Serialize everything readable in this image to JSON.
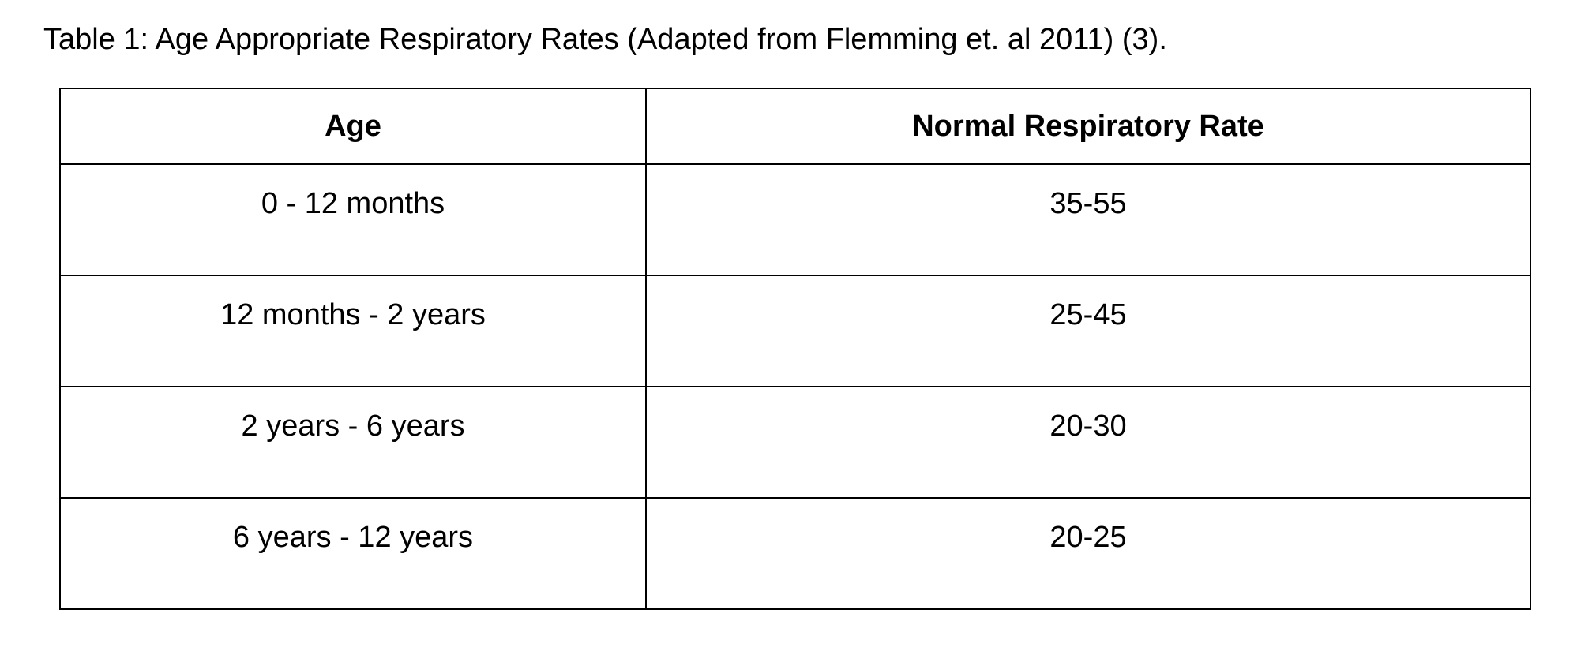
{
  "caption": "Table 1: Age Appropriate Respiratory Rates (Adapted from Flemming et. al 2011) (3).",
  "table": {
    "headers": [
      "Age",
      "Normal Respiratory Rate"
    ],
    "rows": [
      [
        "0 - 12 months",
        "35-55"
      ],
      [
        "12 months - 2 years",
        "25-45"
      ],
      [
        "2 years - 6 years",
        "20-30"
      ],
      [
        "6 years - 12 years",
        "20-25"
      ]
    ]
  }
}
